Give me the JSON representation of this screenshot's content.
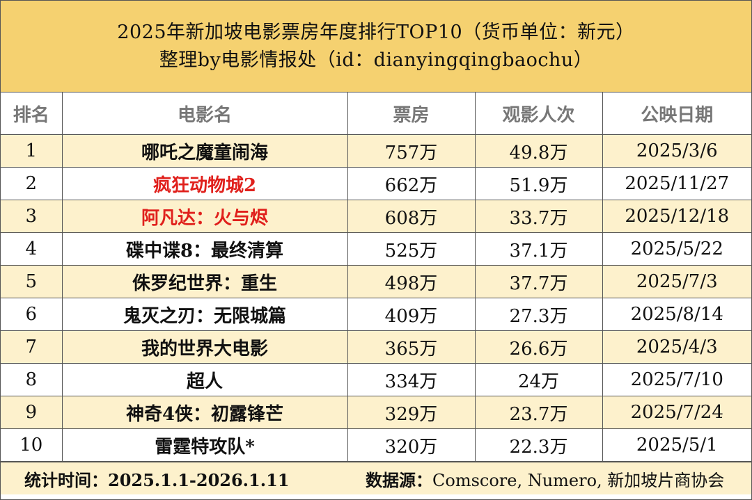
{
  "title": {
    "line1": "2025年新加坡电影票房年度排行TOP10（货币单位：新元）",
    "line2": "整理by电影情报处（id：dianyingqingbaochu）"
  },
  "columns": [
    "排名",
    "电影名",
    "票房",
    "观影人次",
    "公映日期"
  ],
  "rows": [
    {
      "rank": "1",
      "film": "哪吒之魔童闹海",
      "box_office": "757万",
      "admissions": "49.8万",
      "release": "2025/3/6",
      "highlight": false
    },
    {
      "rank": "2",
      "film": "疯狂动物城2",
      "box_office": "662万",
      "admissions": "51.9万",
      "release": "2025/11/27",
      "highlight": true
    },
    {
      "rank": "3",
      "film": "阿凡达：火与烬",
      "box_office": "608万",
      "admissions": "33.7万",
      "release": "2025/12/18",
      "highlight": true
    },
    {
      "rank": "4",
      "film": "碟中谍8：最终清算",
      "box_office": "525万",
      "admissions": "37.1万",
      "release": "2025/5/22",
      "highlight": false
    },
    {
      "rank": "5",
      "film": "侏罗纪世界：重生",
      "box_office": "498万",
      "admissions": "37.7万",
      "release": "2025/7/3",
      "highlight": false
    },
    {
      "rank": "6",
      "film": "鬼灭之刃：无限城篇",
      "box_office": "409万",
      "admissions": "27.3万",
      "release": "2025/8/14",
      "highlight": false
    },
    {
      "rank": "7",
      "film": "我的世界大电影",
      "box_office": "365万",
      "admissions": "26.6万",
      "release": "2025/4/3",
      "highlight": false
    },
    {
      "rank": "8",
      "film": "超人",
      "box_office": "334万",
      "admissions": "24万",
      "release": "2025/7/10",
      "highlight": false
    },
    {
      "rank": "9",
      "film": "神奇4侠：初露锋芒",
      "box_office": "329万",
      "admissions": "23.7万",
      "release": "2025/7/24",
      "highlight": false
    },
    {
      "rank": "10",
      "film": "雷霆特攻队*",
      "box_office": "320万",
      "admissions": "22.3万",
      "release": "2025/5/1",
      "highlight": false
    }
  ],
  "footer": {
    "period": "统计时间：2025.1.1-2026.1.11",
    "source_label": "数据源：",
    "source_value": "Comscore, Numero, 新加坡片商协会"
  },
  "colors": {
    "title_bg": "#f5d170",
    "alt_row_bg": "#fdf1cc",
    "highlight_text": "#e0201c",
    "header_text": "#777777"
  }
}
